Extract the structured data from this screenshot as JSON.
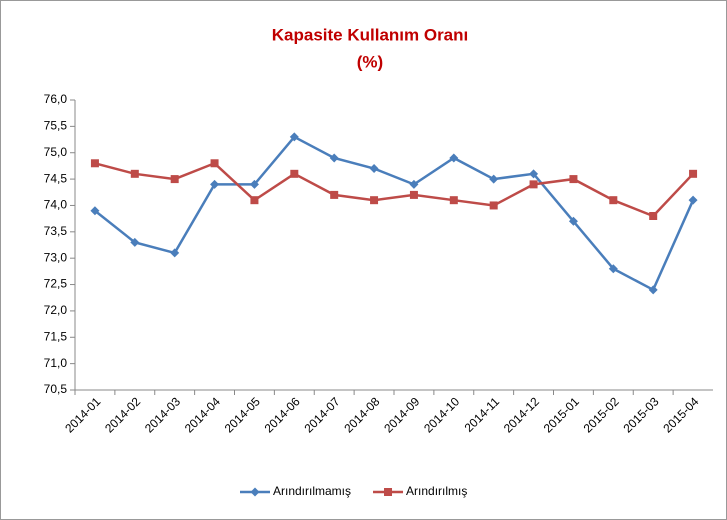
{
  "chart_data": {
    "type": "line",
    "title": "Kapasite Kullanım Oranı",
    "subtitle": "(%)",
    "categories": [
      "2014-01",
      "2014-02",
      "2014-03",
      "2014-04",
      "2014-05",
      "2014-06",
      "2014-07",
      "2014-08",
      "2014-09",
      "2014-10",
      "2014-11",
      "2014-12",
      "2015-01",
      "2015-02",
      "2015-03",
      "2015-04"
    ],
    "series": [
      {
        "name": "Arındırılmamış",
        "color": "#4a7ebb",
        "marker": "diamond",
        "values": [
          73.9,
          73.3,
          73.1,
          74.4,
          74.4,
          75.3,
          74.9,
          74.7,
          74.4,
          74.9,
          74.5,
          74.6,
          73.7,
          72.8,
          72.4,
          74.1
        ]
      },
      {
        "name": "Arındırılmış",
        "color": "#be4b48",
        "marker": "square",
        "values": [
          74.8,
          74.6,
          74.5,
          74.8,
          74.1,
          74.6,
          74.2,
          74.1,
          74.2,
          74.1,
          74.0,
          74.4,
          74.5,
          74.1,
          73.8,
          74.6
        ]
      }
    ],
    "ylim": [
      70.5,
      76.0
    ],
    "yticks": [
      {
        "value": 70.5,
        "label": "70,5"
      },
      {
        "value": 71.0,
        "label": "71,0"
      },
      {
        "value": 71.5,
        "label": "71,5"
      },
      {
        "value": 72.0,
        "label": "72,0"
      },
      {
        "value": 72.5,
        "label": "72,5"
      },
      {
        "value": 73.0,
        "label": "73,0"
      },
      {
        "value": 73.5,
        "label": "73,5"
      },
      {
        "value": 74.0,
        "label": "74,0"
      },
      {
        "value": 74.5,
        "label": "74,5"
      },
      {
        "value": 75.0,
        "label": "75,0"
      },
      {
        "value": 75.5,
        "label": "75,5"
      },
      {
        "value": 76.0,
        "label": "76,0"
      }
    ],
    "grid": false,
    "legend": "bottom"
  }
}
